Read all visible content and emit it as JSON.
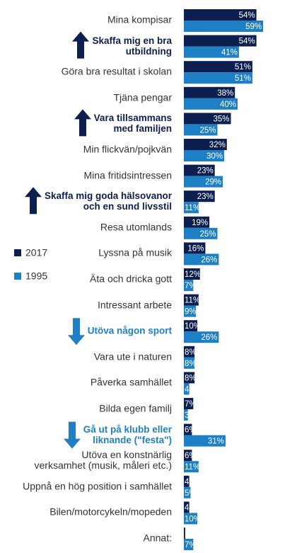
{
  "chart_data": {
    "type": "bar",
    "orientation": "horizontal",
    "categories": [
      "Mina kompisar",
      "Skaffa mig en bra\nutbildning",
      "Göra bra resultat i skolan",
      "Tjäna pengar",
      "Vara tillsammans\nmed familjen",
      "Min flickvän/pojkvän",
      "Mina fritidsintressen",
      "Skaffa mig goda hälsovanor\noch en sund livsstil",
      "Resa utomlands",
      "Lyssna på musik",
      "Äta och dricka gott",
      "Intressant arbete",
      "Utöva någon sport",
      "Vara ute i naturen",
      "Påverka samhället",
      "Bilda egen familj",
      "Gå ut på klubb eller\nliknande (\"festa\")",
      "Utöva en konstnärlig\nverksamhet (musik, måleri etc.)",
      "Uppnå en hög position i samhället",
      "Bilen/motorcykeln/mopeden",
      "Annat:"
    ],
    "highlights": [
      null,
      "up",
      null,
      null,
      "up",
      null,
      null,
      "up",
      null,
      null,
      null,
      null,
      "down",
      null,
      null,
      null,
      "down",
      null,
      null,
      null,
      null
    ],
    "xlim": [
      0,
      60
    ],
    "series": [
      {
        "name": "2017",
        "color": "#0d1f4f",
        "values": [
          54,
          54,
          51,
          38,
          35,
          32,
          23,
          23,
          19,
          16,
          12,
          11,
          10,
          8,
          8,
          7,
          6,
          6,
          4,
          4,
          1
        ],
        "value_labels": [
          "54%",
          "54%",
          "51%",
          "38%",
          "35%",
          "32%",
          "23%",
          "23%",
          "19%",
          "16%",
          "12%",
          "11%",
          "10%",
          "8%",
          "8%",
          "7%",
          "6%",
          "6%",
          "4%",
          "4",
          null
        ]
      },
      {
        "name": "1995",
        "color": "#1f7fc4",
        "values": [
          59,
          41,
          51,
          40,
          25,
          30,
          29,
          11,
          25,
          26,
          7,
          9,
          26,
          8,
          4,
          3,
          31,
          11,
          5,
          10,
          7
        ],
        "value_labels": [
          "59%",
          "41%",
          "51%",
          "40%",
          "25%",
          "30%",
          "29%",
          "11%",
          "25%",
          "26%",
          "7%",
          "9%",
          "26%",
          "8%",
          "4%",
          "3",
          "31%",
          "11%",
          "5%",
          "10%",
          "7%"
        ]
      }
    ]
  }
}
